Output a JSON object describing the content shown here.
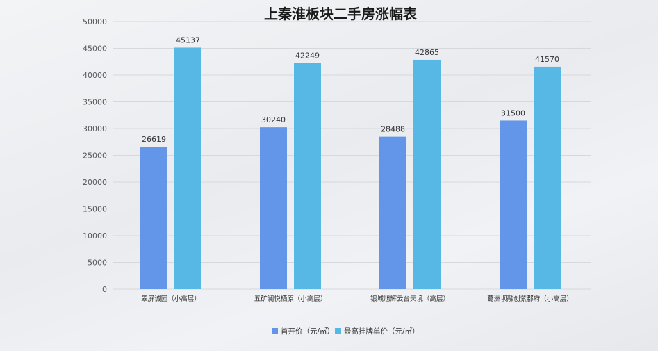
{
  "chart_data": {
    "type": "bar",
    "title": "上秦淮板块二手房涨幅表",
    "categories": [
      "翠屏诚园（小高层）",
      "五矿澜悦栖原（小高层）",
      "银城旭辉云台天境（高层）",
      "葛洲坝融创紫郡府（小高层）"
    ],
    "series": [
      {
        "name": "首开价（元/㎡）",
        "values": [
          26619,
          30240,
          28488,
          31500
        ],
        "color": "#6396e8"
      },
      {
        "name": "最高挂牌单价（元/㎡）",
        "values": [
          45137,
          42249,
          42865,
          41570
        ],
        "color": "#57b8e6"
      }
    ],
    "yticks": [
      "0",
      "5000",
      "10000",
      "15000",
      "20000",
      "25000",
      "30000",
      "35000",
      "40000",
      "45000",
      "50000"
    ],
    "ylim": [
      0,
      50000
    ],
    "grid": true,
    "legend": "bottom-center"
  }
}
